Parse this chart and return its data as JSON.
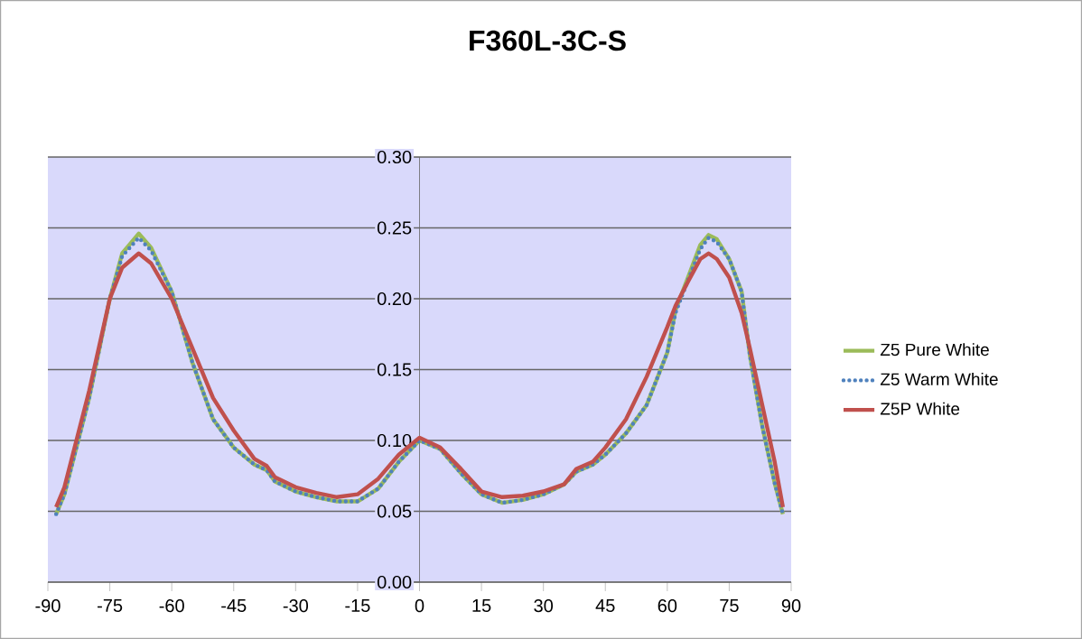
{
  "chart_data": {
    "type": "line",
    "title": "F360L-3C-S",
    "x": [
      -88,
      -86,
      -80,
      -75,
      -72,
      -68,
      -65,
      -60,
      -55,
      -50,
      -45,
      -40,
      -37,
      -35,
      -30,
      -25,
      -20,
      -15,
      -10,
      -5,
      0,
      5,
      10,
      15,
      20,
      25,
      30,
      35,
      38,
      42,
      45,
      50,
      55,
      60,
      62,
      65,
      68,
      70,
      72,
      75,
      78,
      80,
      83,
      86,
      88
    ],
    "series": [
      {
        "name": "Z5 Pure White",
        "color": "#9bbb59",
        "line_style": "solid",
        "values": [
          0.048,
          0.062,
          0.13,
          0.2,
          0.232,
          0.246,
          0.236,
          0.205,
          0.155,
          0.115,
          0.095,
          0.083,
          0.079,
          0.071,
          0.064,
          0.06,
          0.057,
          0.057,
          0.066,
          0.085,
          0.1,
          0.094,
          0.077,
          0.062,
          0.056,
          0.058,
          0.062,
          0.069,
          0.078,
          0.083,
          0.09,
          0.105,
          0.125,
          0.162,
          0.192,
          0.215,
          0.238,
          0.245,
          0.242,
          0.228,
          0.205,
          0.16,
          0.11,
          0.07,
          0.048
        ]
      },
      {
        "name": "Z5 Warm White",
        "color": "#4f81bd",
        "line_style": "dotted",
        "values": [
          0.048,
          0.062,
          0.13,
          0.2,
          0.23,
          0.243,
          0.234,
          0.205,
          0.155,
          0.115,
          0.095,
          0.083,
          0.079,
          0.071,
          0.064,
          0.06,
          0.057,
          0.057,
          0.066,
          0.085,
          0.1,
          0.094,
          0.077,
          0.062,
          0.056,
          0.058,
          0.062,
          0.069,
          0.078,
          0.083,
          0.09,
          0.105,
          0.125,
          0.162,
          0.19,
          0.213,
          0.235,
          0.243,
          0.24,
          0.228,
          0.205,
          0.16,
          0.11,
          0.07,
          0.048
        ]
      },
      {
        "name": "Z5P White",
        "color": "#c0504d",
        "line_style": "solid",
        "values": [
          0.053,
          0.067,
          0.135,
          0.2,
          0.222,
          0.232,
          0.225,
          0.2,
          0.165,
          0.13,
          0.107,
          0.087,
          0.082,
          0.074,
          0.067,
          0.063,
          0.06,
          0.062,
          0.073,
          0.09,
          0.102,
          0.095,
          0.08,
          0.064,
          0.06,
          0.061,
          0.064,
          0.069,
          0.08,
          0.085,
          0.095,
          0.115,
          0.145,
          0.18,
          0.195,
          0.212,
          0.228,
          0.232,
          0.228,
          0.215,
          0.19,
          0.165,
          0.125,
          0.085,
          0.053
        ]
      }
    ],
    "xlim": [
      -90,
      90
    ],
    "xticks": [
      -90,
      -75,
      -60,
      -45,
      -30,
      -15,
      0,
      15,
      30,
      45,
      60,
      75,
      90
    ],
    "ylim": [
      0,
      0.3
    ],
    "yticks": [
      {
        "value": 0,
        "label": "0.00"
      },
      {
        "value": 0.05,
        "label": "0.05"
      },
      {
        "value": 0.1,
        "label": "0.10"
      },
      {
        "value": 0.15,
        "label": "0.15"
      },
      {
        "value": 0.2,
        "label": "0.20"
      },
      {
        "value": 0.25,
        "label": "0.25"
      },
      {
        "value": 0.3,
        "label": "0.30"
      }
    ],
    "grid": "y",
    "legend": "right",
    "marker": "none"
  }
}
